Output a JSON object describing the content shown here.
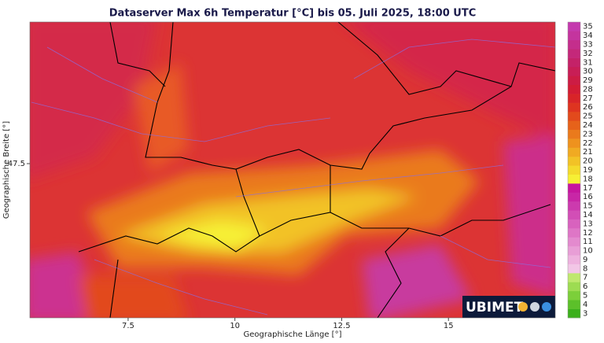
{
  "map": {
    "title": "Dataserver Max 6h Temperatur [°C] bis 05. Juli 2025, 18:00 UTC",
    "xlabel": "Geographische Länge [°]",
    "ylabel": "Geographische Breite [°]",
    "xlim": [
      5.2,
      17.5
    ],
    "xticks": [
      7.5,
      10,
      12.5,
      15
    ],
    "ylim": [
      45.05,
      49.75
    ],
    "yticks": [
      47.5
    ],
    "colorbar": {
      "ticks": [
        3,
        4,
        5,
        6,
        7,
        8,
        9,
        10,
        11,
        12,
        13,
        14,
        15,
        16,
        17,
        18,
        19,
        20,
        21,
        22,
        23,
        24,
        25,
        26,
        27,
        28,
        29,
        30,
        31,
        32,
        33,
        34,
        35
      ],
      "colors": [
        "#3cb01c",
        "#5cc02a",
        "#7ccf3a",
        "#9ddc52",
        "#bfe86e",
        "#f2c6e6",
        "#eeb2de",
        "#e89ed6",
        "#e38ace",
        "#de76c6",
        "#d862be",
        "#d24eb6",
        "#cc3aae",
        "#c826a6",
        "#c6169e",
        "#f6f034",
        "#f4da2c",
        "#f2c226",
        "#f0aa22",
        "#ee921e",
        "#ea7a1c",
        "#e6621a",
        "#e24a1c",
        "#de3420",
        "#d82428",
        "#d21c34",
        "#cc1c44",
        "#c81e56",
        "#c42268",
        "#c4287a",
        "#c42e8c",
        "#c4349e",
        "#c43aae"
      ]
    },
    "logo": "UBIMET"
  }
}
